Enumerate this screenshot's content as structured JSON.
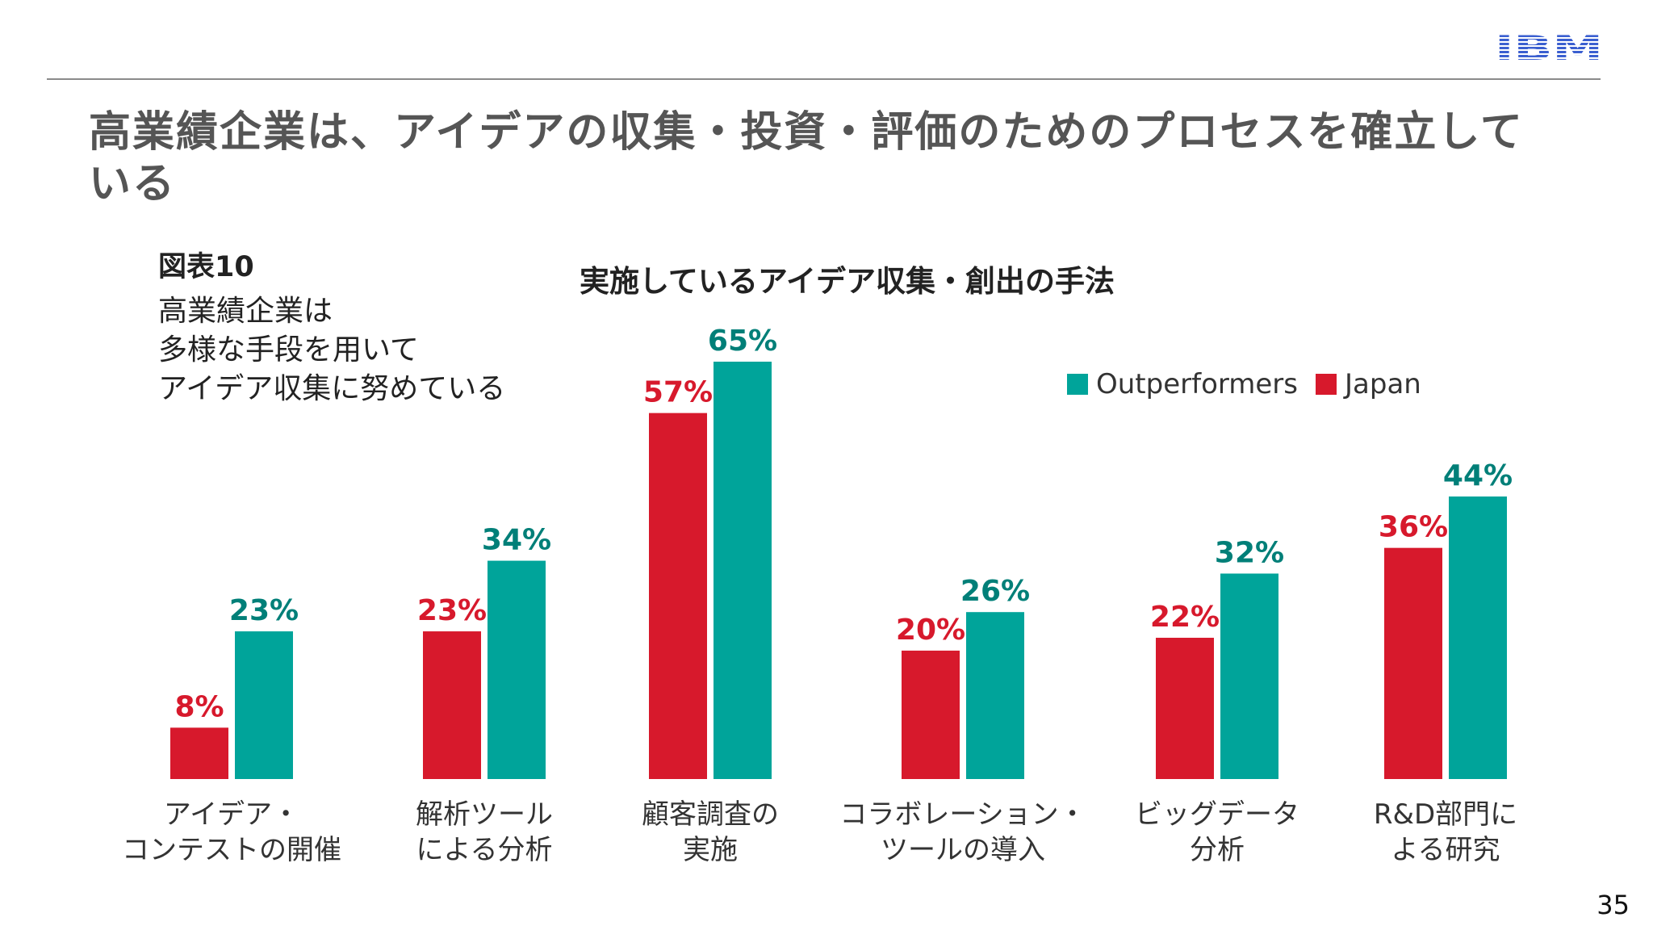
{
  "slide": {
    "title": "高業績企業は、アイデアの収集・投資・評価のためのプロセスを確立している",
    "figure_label": "図表10",
    "figure_description": "高業績企業は\n多様な手段を用いて\nアイデア収集に努めている",
    "logo_text": "IBM",
    "page_number": "35"
  },
  "colors": {
    "japan": "#d7192c",
    "outperformers": "#00a49a",
    "outperformers_label": "#007f78",
    "logo": "#3b5fd0"
  },
  "chart_data": {
    "type": "bar",
    "title": "実施しているアイデア収集・創出の手法",
    "categories": [
      "アイデア・\nコンテストの開催",
      "解析ツール\nによる分析",
      "顧客調査の\n実施",
      "コラボレーション・\nツールの導入",
      "ビッグデータ\n分析",
      "R&D部門に\nよる研究"
    ],
    "series": [
      {
        "name": "Japan",
        "values": [
          8,
          23,
          57,
          20,
          22,
          36
        ],
        "labels": [
          "8%",
          "23%",
          "57%",
          "20%",
          "22%",
          "36%"
        ]
      },
      {
        "name": "Outperformers",
        "values": [
          23,
          34,
          65,
          26,
          32,
          44
        ],
        "labels": [
          "23%",
          "34%",
          "65%",
          "26%",
          "32%",
          "44%"
        ]
      }
    ],
    "legend": [
      "Outperformers",
      "Japan"
    ],
    "legend_position": "top-right",
    "ylim": [
      0,
      65
    ],
    "grid": false,
    "unit": "%"
  }
}
